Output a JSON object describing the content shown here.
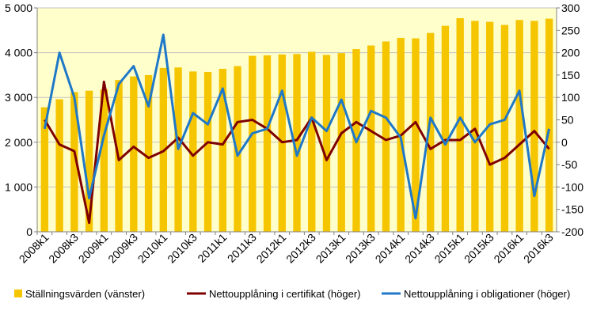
{
  "chart_data": {
    "type": "bar",
    "x": [
      "2008k1",
      "2008k2",
      "2008k3",
      "2008k4",
      "2009k1",
      "2009k2",
      "2009k3",
      "2009k4",
      "2010k1",
      "2010k2",
      "2010k3",
      "2010k4",
      "2011k1",
      "2011k2",
      "2011k3",
      "2011k4",
      "2012k1",
      "2012k2",
      "2012k3",
      "2012k4",
      "2013k1",
      "2013k2",
      "2013k3",
      "2013k4",
      "2014k1",
      "2014k2",
      "2014k3",
      "2014k4",
      "2015k1",
      "2015k2",
      "2015k3",
      "2015k4",
      "2016k1",
      "2016k2",
      "2016k3"
    ],
    "x_tick_labels": [
      "2008k1",
      "2008k3",
      "2009k1",
      "2009k3",
      "2010k1",
      "2010k3",
      "2011k1",
      "2011k3",
      "2012k1",
      "2012k3",
      "2013k1",
      "2013k3",
      "2014k1",
      "2014k3",
      "2015k1",
      "2015k3",
      "2016k1",
      "2016k3"
    ],
    "y_left": {
      "min": 0,
      "max": 5000,
      "ticks": [
        0,
        1000,
        2000,
        3000,
        4000,
        5000
      ],
      "tick_labels": [
        "0",
        "1 000",
        "2 000",
        "3 000",
        "4 000",
        "5 000"
      ]
    },
    "y_right": {
      "min": -200,
      "max": 300,
      "ticks": [
        -200,
        -150,
        -100,
        -50,
        0,
        50,
        100,
        150,
        200,
        250,
        300
      ],
      "tick_labels": [
        "-200",
        "-150",
        "-100",
        "-50",
        "0",
        "50",
        "100",
        "150",
        "200",
        "250",
        "300"
      ]
    },
    "series": [
      {
        "name": "Ställningsvärden (vänster)",
        "type": "bar",
        "axis": "left",
        "color": "#f5c500",
        "values": [
          2780,
          2960,
          3120,
          3150,
          3180,
          3390,
          3470,
          3500,
          3660,
          3670,
          3580,
          3570,
          3640,
          3700,
          3930,
          3940,
          3960,
          3970,
          4020,
          3950,
          3990,
          4080,
          4160,
          4250,
          4330,
          4320,
          4440,
          4600,
          4770,
          4710,
          4690,
          4620,
          4730,
          4710,
          4760
        ]
      },
      {
        "name": "Nettoupplåning i certifikat (höger)",
        "type": "line",
        "axis": "right",
        "color": "#7f0000",
        "values": [
          50,
          -5,
          -20,
          -180,
          135,
          -40,
          -10,
          -35,
          -20,
          10,
          -30,
          0,
          -5,
          45,
          50,
          30,
          0,
          5,
          55,
          -40,
          20,
          45,
          25,
          5,
          15,
          45,
          -15,
          5,
          5,
          30,
          -50,
          -35,
          -5,
          25,
          -15
        ]
      },
      {
        "name": "Nettoupplåning i obligationer (höger)",
        "type": "line",
        "axis": "right",
        "color": "#1f78c8",
        "values": [
          30,
          200,
          100,
          -125,
          15,
          130,
          170,
          80,
          240,
          -15,
          65,
          40,
          120,
          -30,
          20,
          30,
          115,
          -30,
          55,
          25,
          95,
          0,
          70,
          55,
          10,
          -170,
          55,
          -5,
          55,
          0,
          40,
          50,
          115,
          -120,
          30
        ]
      }
    ],
    "legend_position": "bottom",
    "grid": true,
    "plot_background": "#ffffcc",
    "gridline_color": "#c0c0c0"
  }
}
